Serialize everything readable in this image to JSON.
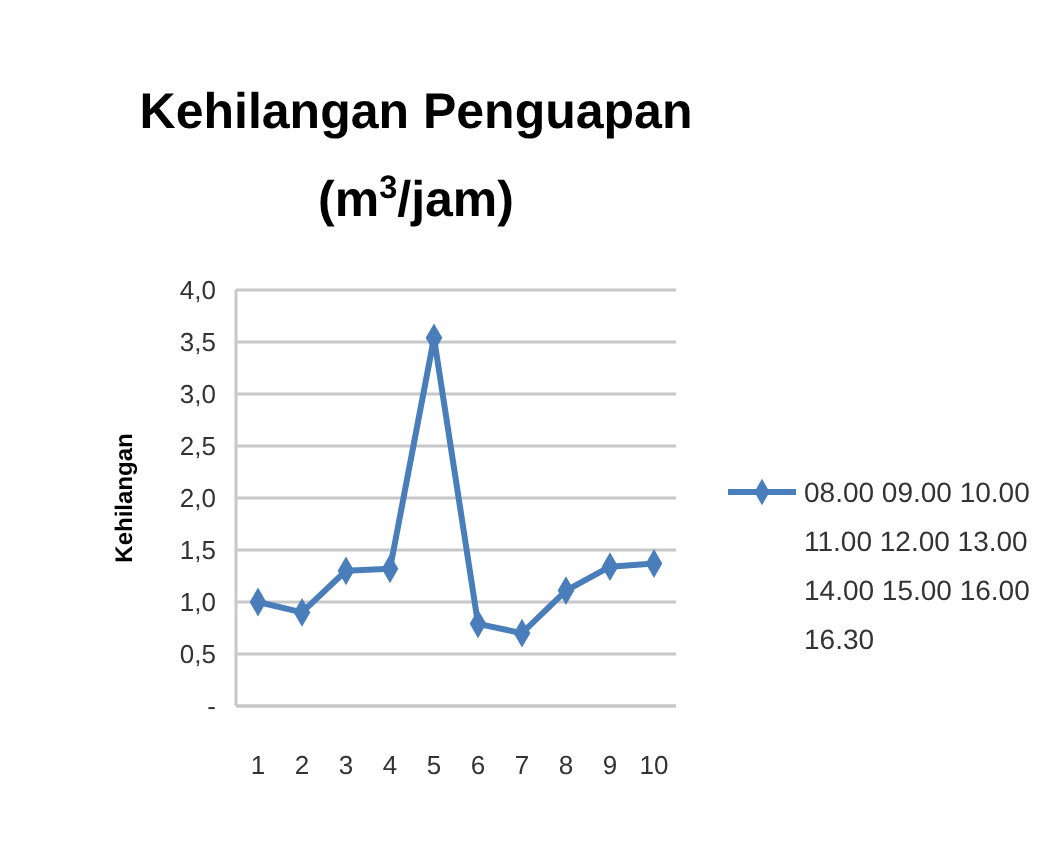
{
  "chart_data": {
    "type": "line",
    "title": "Kehilangan Penguapan (m$^{3}$/jam)",
    "ylabel": "Kehilangan",
    "categories": [
      "1",
      "2",
      "3",
      "4",
      "5",
      "6",
      "7",
      "8",
      "9",
      "10"
    ],
    "series": [
      {
        "name": "08.00 09.00 10.00 11.00 12.00 13.00 14.00 15.00 16.00 16.30",
        "color": "#4a7ebb",
        "values": [
          1.0,
          0.9,
          1.3,
          1.32,
          3.54,
          0.79,
          0.7,
          1.11,
          1.34,
          1.37
        ]
      }
    ],
    "ylim": [
      0,
      4
    ],
    "yticks": [
      {
        "value": 0,
        "label": "-"
      },
      {
        "value": 0.5,
        "label": "0,5"
      },
      {
        "value": 1,
        "label": "1,0"
      },
      {
        "value": 1.5,
        "label": "1,5"
      },
      {
        "value": 2,
        "label": "2,0"
      },
      {
        "value": 2.5,
        "label": "2,5"
      },
      {
        "value": 3,
        "label": "3,0"
      },
      {
        "value": 3.5,
        "label": "3,5"
      },
      {
        "value": 4,
        "label": "4,0"
      }
    ],
    "grid": "y",
    "legend": "right",
    "marker": "diamond",
    "line_style": "solid"
  }
}
